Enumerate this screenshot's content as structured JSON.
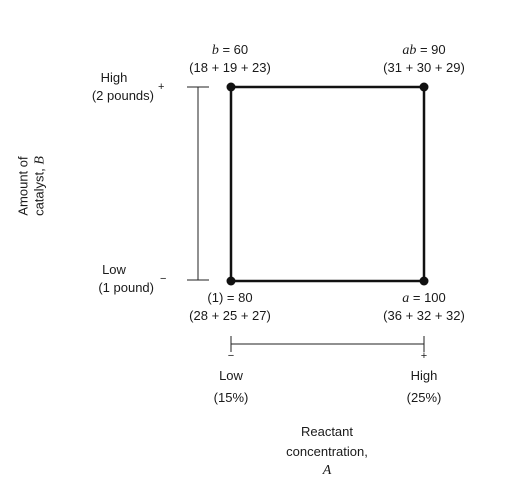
{
  "corners": {
    "b": {
      "label": "b",
      "eq": " = ",
      "value": "60",
      "breakdown": "(18 + 19 + 23)"
    },
    "ab": {
      "label": "ab",
      "eq": " = ",
      "value": "90",
      "breakdown": "(31 + 30 + 29)"
    },
    "one": {
      "label": "(1)",
      "eq": " = ",
      "value": "80",
      "breakdown": "(28 + 25 + 27)"
    },
    "a": {
      "label": "a",
      "eq": " = ",
      "value": "100",
      "breakdown": "(36 + 32 + 32)"
    }
  },
  "factor_b": {
    "axis_label_1": "Amount of",
    "axis_label_2": "catalyst, ",
    "axis_symbol": "B",
    "high_label": "High",
    "high_detail": "(2 pounds)",
    "high_sign": "+",
    "low_label": "Low",
    "low_detail": "(1 pound)",
    "low_sign": "−"
  },
  "factor_a": {
    "axis_label_1": "Reactant",
    "axis_label_2": "concentration,",
    "axis_symbol": "A",
    "low_label": "Low",
    "low_detail": "(15%)",
    "low_sign": "−",
    "high_label": "High",
    "high_detail": "(25%)",
    "high_sign": "+"
  }
}
